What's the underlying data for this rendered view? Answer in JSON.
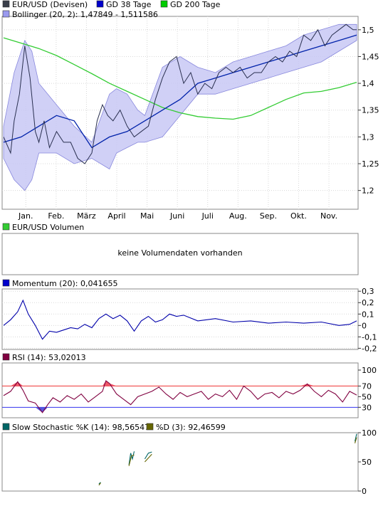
{
  "chart_data": [
    {
      "type": "line",
      "panel": "price",
      "legend": [
        {
          "label": "EUR/USD (Devisen)",
          "color": "#3a3f4a"
        },
        {
          "label": "GD 38 Tage",
          "color": "#0000cc"
        },
        {
          "label": "GD 200 Tage",
          "color": "#00cc00"
        },
        {
          "label": "Bollinger (20, 2): 1,47849 - 1,511586",
          "color": "#9999ee"
        }
      ],
      "x_tick_labels": [
        "Jan.",
        "Feb.",
        "März",
        "April",
        "Mai",
        "Juni",
        "Juli",
        "Aug.",
        "Sep.",
        "Okt.",
        "Nov."
      ],
      "y_tick_labels": [
        "1,5",
        "1,45",
        "1,4",
        "1,35",
        "1,3",
        "1,25",
        "1,2"
      ],
      "y_ticks": [
        1.5,
        1.45,
        1.4,
        1.35,
        1.3,
        1.25,
        1.2
      ],
      "ylim": [
        1.165,
        1.525
      ],
      "grid": true,
      "series": [
        {
          "name": "EUR/USD (Devisen)",
          "color": "#2a3050",
          "x": [
            0,
            0.02,
            0.03,
            0.045,
            0.06,
            0.075,
            0.09,
            0.1,
            0.115,
            0.13,
            0.15,
            0.17,
            0.19,
            0.21,
            0.23,
            0.25,
            0.265,
            0.28,
            0.295,
            0.31,
            0.33,
            0.35,
            0.37,
            0.39,
            0.41,
            0.43,
            0.45,
            0.47,
            0.49,
            0.51,
            0.53,
            0.55,
            0.57,
            0.59,
            0.61,
            0.63,
            0.65,
            0.67,
            0.69,
            0.71,
            0.73,
            0.75,
            0.77,
            0.79,
            0.81,
            0.83,
            0.85,
            0.87,
            0.89,
            0.91,
            0.93,
            0.95,
            0.97,
            0.99,
            1.0
          ],
          "values": [
            1.3,
            1.27,
            1.33,
            1.38,
            1.47,
            1.41,
            1.31,
            1.29,
            1.33,
            1.28,
            1.31,
            1.29,
            1.29,
            1.26,
            1.25,
            1.27,
            1.33,
            1.36,
            1.34,
            1.33,
            1.35,
            1.32,
            1.3,
            1.31,
            1.32,
            1.37,
            1.41,
            1.44,
            1.45,
            1.4,
            1.42,
            1.38,
            1.4,
            1.39,
            1.42,
            1.43,
            1.42,
            1.43,
            1.41,
            1.42,
            1.42,
            1.44,
            1.45,
            1.44,
            1.46,
            1.45,
            1.49,
            1.48,
            1.5,
            1.47,
            1.49,
            1.5,
            1.51,
            1.5,
            1.5
          ]
        },
        {
          "name": "GD 38 Tage",
          "color": "#0022aa",
          "x": [
            0,
            0.05,
            0.1,
            0.15,
            0.2,
            0.25,
            0.3,
            0.35,
            0.4,
            0.45,
            0.5,
            0.55,
            0.6,
            0.65,
            0.7,
            0.75,
            0.8,
            0.85,
            0.9,
            0.95,
            1.0
          ],
          "values": [
            1.29,
            1.3,
            1.32,
            1.34,
            1.33,
            1.28,
            1.3,
            1.31,
            1.33,
            1.35,
            1.37,
            1.4,
            1.41,
            1.42,
            1.43,
            1.44,
            1.45,
            1.46,
            1.47,
            1.48,
            1.49
          ]
        },
        {
          "name": "GD 200 Tage",
          "color": "#33cc33",
          "x": [
            0,
            0.05,
            0.1,
            0.15,
            0.2,
            0.25,
            0.3,
            0.35,
            0.4,
            0.45,
            0.5,
            0.55,
            0.6,
            0.65,
            0.7,
            0.75,
            0.8,
            0.85,
            0.9,
            0.95,
            1.0
          ],
          "values": [
            1.485,
            1.475,
            1.465,
            1.452,
            1.435,
            1.418,
            1.4,
            1.385,
            1.37,
            1.355,
            1.345,
            1.338,
            1.335,
            1.333,
            1.34,
            1.355,
            1.37,
            1.382,
            1.385,
            1.392,
            1.402
          ]
        }
      ],
      "bands": [
        {
          "name": "Bollinger (20, 2)",
          "color": "#9999ee",
          "x": [
            0,
            0.03,
            0.06,
            0.08,
            0.1,
            0.15,
            0.2,
            0.25,
            0.3,
            0.32,
            0.35,
            0.38,
            0.4,
            0.45,
            0.5,
            0.55,
            0.6,
            0.65,
            0.7,
            0.75,
            0.8,
            0.85,
            0.9,
            0.95,
            1.0
          ],
          "upper": [
            1.32,
            1.42,
            1.48,
            1.46,
            1.4,
            1.36,
            1.32,
            1.29,
            1.38,
            1.39,
            1.38,
            1.35,
            1.34,
            1.43,
            1.45,
            1.43,
            1.42,
            1.44,
            1.45,
            1.46,
            1.47,
            1.49,
            1.5,
            1.51,
            1.51
          ],
          "lower": [
            1.26,
            1.22,
            1.2,
            1.22,
            1.27,
            1.27,
            1.25,
            1.26,
            1.24,
            1.27,
            1.28,
            1.29,
            1.29,
            1.3,
            1.34,
            1.38,
            1.38,
            1.39,
            1.4,
            1.41,
            1.42,
            1.43,
            1.44,
            1.46,
            1.48
          ]
        }
      ]
    },
    {
      "type": "bar",
      "panel": "volume",
      "legend": [
        {
          "label": "EUR/USD Volumen",
          "color": "#33cc33"
        }
      ],
      "message": "keine Volumendaten vorhanden"
    },
    {
      "type": "line",
      "panel": "momentum",
      "legend": [
        {
          "label": "Momentum (20): 0,041655",
          "color": "#0000cc"
        }
      ],
      "y_tick_labels": [
        "0,3",
        "0,2",
        "0,1",
        "0",
        "-0,1",
        "-0,2"
      ],
      "y_ticks": [
        0.3,
        0.2,
        0.1,
        0,
        -0.1,
        -0.2
      ],
      "ylim": [
        -0.21,
        0.32
      ],
      "grid": true,
      "series": [
        {
          "name": "Momentum (20)",
          "color": "#0000aa",
          "x": [
            0,
            0.02,
            0.04,
            0.055,
            0.07,
            0.09,
            0.11,
            0.13,
            0.15,
            0.17,
            0.19,
            0.21,
            0.23,
            0.25,
            0.27,
            0.29,
            0.31,
            0.33,
            0.35,
            0.37,
            0.39,
            0.41,
            0.43,
            0.45,
            0.47,
            0.49,
            0.51,
            0.55,
            0.6,
            0.65,
            0.7,
            0.75,
            0.8,
            0.85,
            0.9,
            0.95,
            0.98,
            1.0
          ],
          "values": [
            0.0,
            0.05,
            0.12,
            0.22,
            0.1,
            0.0,
            -0.12,
            -0.05,
            -0.06,
            -0.04,
            -0.02,
            -0.03,
            0.01,
            -0.02,
            0.06,
            0.1,
            0.06,
            0.09,
            0.04,
            -0.05,
            0.04,
            0.08,
            0.03,
            0.05,
            0.1,
            0.08,
            0.09,
            0.04,
            0.06,
            0.03,
            0.04,
            0.02,
            0.03,
            0.02,
            0.03,
            0.0,
            0.01,
            0.04
          ]
        }
      ]
    },
    {
      "type": "line",
      "panel": "rsi",
      "legend": [
        {
          "label": "RSI (14): 53,02013",
          "color": "#800040"
        }
      ],
      "y_tick_labels": [
        "100",
        "70",
        "50",
        "30"
      ],
      "y_ticks": [
        100,
        70,
        50,
        30
      ],
      "ylim": [
        0,
        100
      ],
      "reference_lines": [
        {
          "value": 70,
          "color": "#ee3333"
        },
        {
          "value": 30,
          "color": "#3333ee"
        }
      ],
      "series": [
        {
          "name": "RSI (14)",
          "color": "#800040",
          "x": [
            0,
            0.02,
            0.04,
            0.055,
            0.07,
            0.09,
            0.11,
            0.125,
            0.14,
            0.16,
            0.18,
            0.2,
            0.22,
            0.24,
            0.26,
            0.28,
            0.29,
            0.3,
            0.32,
            0.34,
            0.36,
            0.38,
            0.4,
            0.42,
            0.44,
            0.46,
            0.48,
            0.5,
            0.52,
            0.54,
            0.56,
            0.58,
            0.6,
            0.62,
            0.64,
            0.66,
            0.68,
            0.7,
            0.72,
            0.74,
            0.76,
            0.78,
            0.8,
            0.82,
            0.84,
            0.86,
            0.88,
            0.9,
            0.92,
            0.94,
            0.96,
            0.98,
            1.0
          ],
          "values": [
            52,
            60,
            78,
            62,
            42,
            38,
            20,
            35,
            48,
            40,
            52,
            45,
            55,
            40,
            50,
            60,
            80,
            75,
            55,
            45,
            35,
            50,
            55,
            60,
            68,
            55,
            45,
            58,
            50,
            55,
            60,
            45,
            55,
            50,
            62,
            45,
            70,
            60,
            45,
            55,
            58,
            48,
            60,
            55,
            62,
            74,
            60,
            50,
            62,
            55,
            40,
            60,
            53
          ]
        }
      ]
    },
    {
      "type": "line",
      "panel": "stochastic",
      "legend": [
        {
          "label": "Slow Stochastic %K (14): 98,56547",
          "color": "#006666"
        },
        {
          "label": "%D (3): 92,46599",
          "color": "#666600"
        }
      ],
      "y_tick_labels": [
        "100",
        "50",
        "0"
      ],
      "y_ticks": [
        100,
        50,
        0
      ],
      "ylim": [
        0,
        100
      ],
      "series": [
        {
          "name": "Slow Stochastic %K (14)",
          "color": "#006666",
          "segments": [
            {
              "x": [
                0.27,
                0.275
              ],
              "values": [
                12,
                15
              ]
            },
            {
              "x": [
                0.355,
                0.36,
                0.365,
                0.37
              ],
              "values": [
                45,
                65,
                55,
                68
              ]
            },
            {
              "x": [
                0.4,
                0.41,
                0.42
              ],
              "values": [
                55,
                65,
                67
              ]
            },
            {
              "x": [
                0.995,
                1.0
              ],
              "values": [
                85,
                98
              ]
            }
          ]
        },
        {
          "name": "%D (3)",
          "color": "#666600",
          "segments": [
            {
              "x": [
                0.27,
                0.275
              ],
              "values": [
                10,
                14
              ]
            },
            {
              "x": [
                0.355,
                0.362,
                0.37
              ],
              "values": [
                43,
                60,
                62
              ]
            },
            {
              "x": [
                0.4,
                0.42
              ],
              "values": [
                50,
                63
              ]
            },
            {
              "x": [
                0.995,
                1.0
              ],
              "values": [
                82,
                92
              ]
            }
          ]
        }
      ]
    }
  ]
}
